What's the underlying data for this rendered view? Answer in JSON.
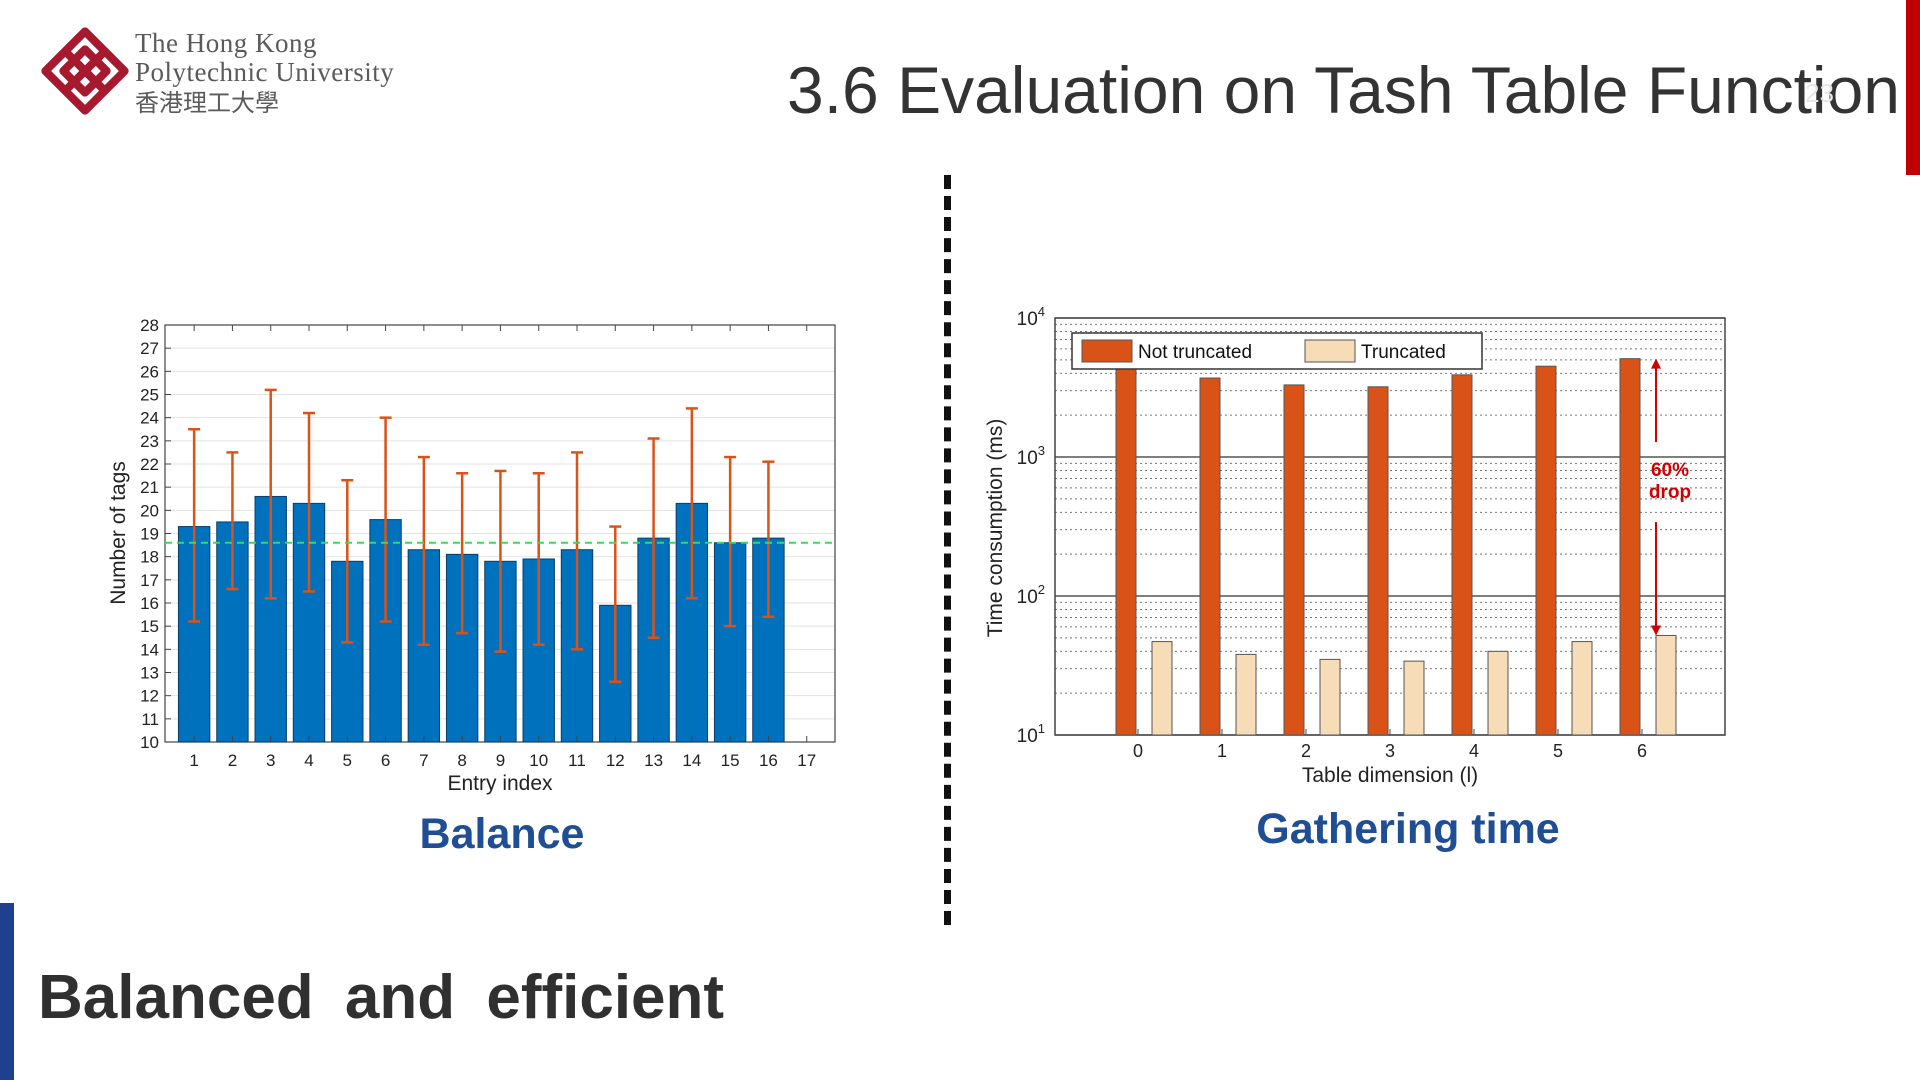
{
  "header": {
    "university_line1": "The Hong Kong",
    "university_line2": "Polytechnic University",
    "university_line3": "香港理工大學",
    "title": "3.6 Evaluation on Tash Table Function",
    "page_number": "23"
  },
  "colors": {
    "accent_red": "#c00000",
    "accent_blue": "#1f3f8f",
    "caption_blue": "#1f4e94"
  },
  "captions": {
    "left": "Balance",
    "right": "Gathering time"
  },
  "conclusion": "Balanced  and  efficient",
  "chart_data": [
    {
      "type": "bar",
      "title": "",
      "xlabel": "Entry index",
      "ylabel": "Number of tags",
      "x_ticks": [
        "1",
        "2",
        "3",
        "4",
        "5",
        "6",
        "7",
        "8",
        "9",
        "10",
        "11",
        "12",
        "13",
        "14",
        "15",
        "16",
        "17"
      ],
      "categories": [
        "1",
        "2",
        "3",
        "4",
        "5",
        "6",
        "7",
        "8",
        "9",
        "10",
        "11",
        "12",
        "13",
        "14",
        "15",
        "16"
      ],
      "values": [
        19.3,
        19.5,
        20.6,
        20.3,
        17.8,
        19.6,
        18.3,
        18.1,
        17.8,
        17.9,
        18.3,
        15.9,
        18.8,
        20.3,
        18.6,
        18.8
      ],
      "error_low": [
        15.2,
        16.6,
        16.2,
        16.5,
        14.3,
        15.2,
        14.2,
        14.7,
        13.9,
        14.2,
        14.0,
        12.6,
        14.5,
        16.2,
        15.0,
        15.4
      ],
      "error_high": [
        23.5,
        22.5,
        25.2,
        24.2,
        21.3,
        24.0,
        22.3,
        21.6,
        21.7,
        21.6,
        22.5,
        19.3,
        23.1,
        24.4,
        22.3,
        22.1
      ],
      "reference_line": 18.6,
      "ylim": [
        10,
        28
      ],
      "y_ticks": [
        10,
        11,
        12,
        13,
        14,
        15,
        16,
        17,
        18,
        19,
        20,
        21,
        22,
        23,
        24,
        25,
        26,
        27,
        28
      ],
      "bar_color": "#0072bd",
      "error_color": "#d95319",
      "reference_color": "#33dd55",
      "grid": true
    },
    {
      "type": "bar",
      "title": "",
      "xlabel": "Table dimension (l)",
      "ylabel": "Time consumption (ms)",
      "y_scale": "log",
      "categories": [
        "0",
        "1",
        "2",
        "3",
        "4",
        "5",
        "6"
      ],
      "ylim": [
        10,
        10000
      ],
      "y_ticks": [
        {
          "base": "10",
          "exp": "1"
        },
        {
          "base": "10",
          "exp": "2"
        },
        {
          "base": "10",
          "exp": "3"
        },
        {
          "base": "10",
          "exp": "4"
        }
      ],
      "series": [
        {
          "name": "Not truncated",
          "color": "#d95319",
          "values": [
            4500,
            3700,
            3300,
            3200,
            3900,
            4500,
            5100
          ]
        },
        {
          "name": "Truncated",
          "color": "#f7dcb8",
          "values": [
            47,
            38,
            35,
            34,
            40,
            47,
            52
          ]
        }
      ],
      "legend_position": "top",
      "annotation": {
        "line1": "60%",
        "line2": "drop",
        "color": "#d10000"
      },
      "grid": true
    }
  ]
}
